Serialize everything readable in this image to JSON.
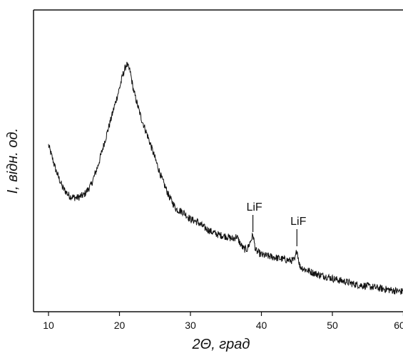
{
  "chart_data": {
    "type": "line",
    "xlabel": "2Θ, град",
    "ylabel": "I, відн. од.",
    "xlim": [
      8,
      60
    ],
    "ylim": [
      0,
      100
    ],
    "x_ticks": [
      10,
      20,
      30,
      40,
      50,
      60
    ],
    "x_tick_labels": [
      "10",
      "20",
      "30",
      "40",
      "50",
      "60"
    ],
    "y_ticks_shown": false,
    "grid": false,
    "legend": "none",
    "line_color": "#111111",
    "series": [
      {
        "x": [
          10,
          11,
          12,
          13,
          14,
          15,
          16,
          17,
          18,
          19,
          20,
          20.5,
          21,
          21.5,
          22,
          23,
          24,
          25,
          26,
          27,
          28,
          29,
          30,
          31,
          32,
          33,
          34,
          35,
          36,
          36.5,
          37,
          37.5,
          38,
          38.5,
          38.8,
          39.2,
          40,
          41,
          42,
          43,
          44,
          44.7,
          45,
          45.4,
          46,
          47,
          48,
          49,
          50,
          51,
          52,
          53,
          54,
          55,
          56,
          57,
          58,
          59,
          60
        ],
        "y": [
          60,
          51.5,
          45,
          42,
          41.5,
          42.5,
          46,
          53,
          62,
          71,
          80,
          85,
          88.5,
          86,
          79,
          70,
          63,
          55.5,
          48,
          42,
          37.5,
          36.5,
          34,
          33,
          31,
          29.5,
          28.5,
          28,
          27,
          28,
          25.5,
          23.5,
          23.5,
          26.5,
          28.5,
          23,
          21.5,
          21,
          20.5,
          20,
          19.5,
          19.5,
          23.5,
          17.5,
          16.5,
          15.5,
          14.5,
          14,
          13.2,
          12.5,
          12,
          11.2,
          10.8,
          10.5,
          10,
          9.6,
          9.2,
          8.8,
          8.5
        ]
      }
    ],
    "annotations": [
      {
        "text": "LiF",
        "x": 38.8,
        "y": 28.5
      },
      {
        "text": "LiF",
        "x": 45.0,
        "y": 23.5
      }
    ]
  }
}
